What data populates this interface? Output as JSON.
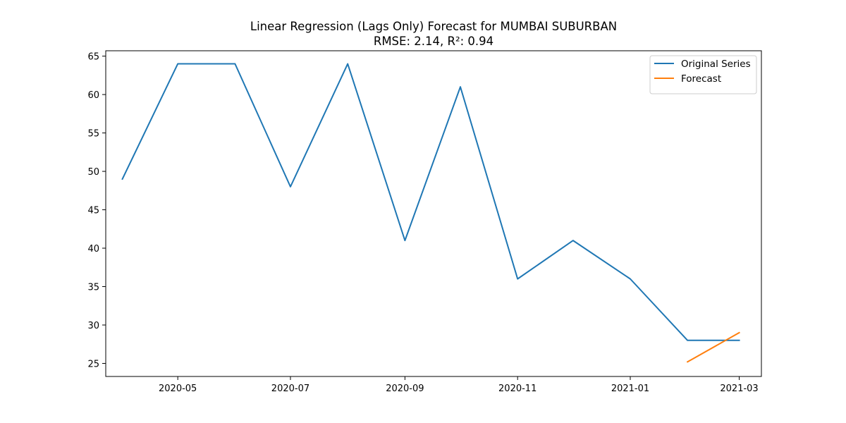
{
  "chart_data": {
    "type": "line",
    "title": "Linear Regression (Lags Only) Forecast for MUMBAI SUBURBAN",
    "subtitle": "RMSE: 2.14, R²: 0.94",
    "xlabel": "",
    "ylabel": "",
    "x_range": [
      "2020-03-23",
      "2021-03-13"
    ],
    "ylim": [
      23.3,
      65.7
    ],
    "x_ticks": [
      "2020-05",
      "2020-07",
      "2020-09",
      "2020-11",
      "2021-01",
      "2021-03"
    ],
    "y_ticks": [
      25,
      30,
      35,
      40,
      45,
      50,
      55,
      60,
      65
    ],
    "grid": false,
    "legend_position": "top-right",
    "series": [
      {
        "name": "Original Series",
        "color": "#1f77b4",
        "points": [
          {
            "x": "2020-04-01",
            "y": 49
          },
          {
            "x": "2020-05-01",
            "y": 64
          },
          {
            "x": "2020-06-01",
            "y": 64
          },
          {
            "x": "2020-07-01",
            "y": 48
          },
          {
            "x": "2020-08-01",
            "y": 64
          },
          {
            "x": "2020-09-01",
            "y": 41
          },
          {
            "x": "2020-10-01",
            "y": 61
          },
          {
            "x": "2020-11-01",
            "y": 36
          },
          {
            "x": "2020-12-01",
            "y": 41
          },
          {
            "x": "2021-01-01",
            "y": 36
          },
          {
            "x": "2021-02-01",
            "y": 28
          },
          {
            "x": "2021-03-01",
            "y": 28
          }
        ]
      },
      {
        "name": "Forecast",
        "color": "#ff7f0e",
        "points": [
          {
            "x": "2021-02-01",
            "y": 25.2
          },
          {
            "x": "2021-03-01",
            "y": 29.0
          }
        ]
      }
    ]
  }
}
